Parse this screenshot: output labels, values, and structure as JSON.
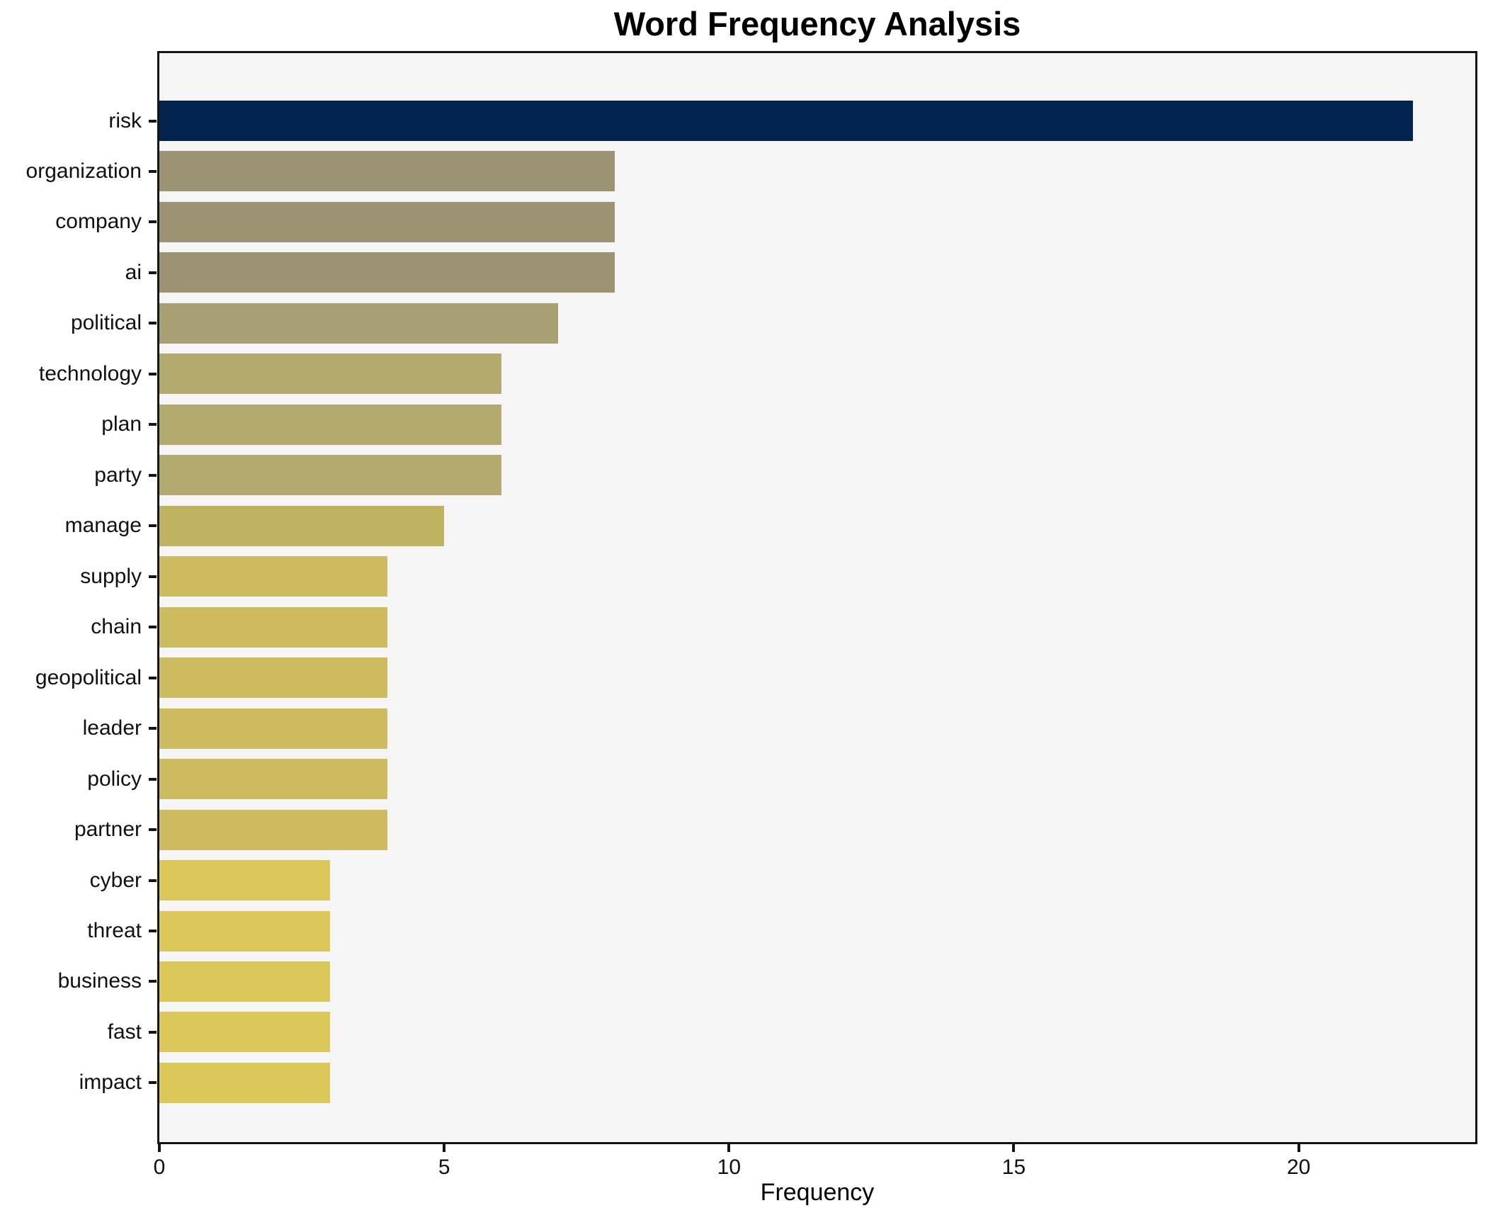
{
  "chart_data": {
    "type": "bar",
    "orientation": "horizontal",
    "title": "Word Frequency Analysis",
    "xlabel": "Frequency",
    "ylabel": "",
    "categories": [
      "risk",
      "organization",
      "company",
      "ai",
      "political",
      "technology",
      "plan",
      "party",
      "manage",
      "supply",
      "chain",
      "geopolitical",
      "leader",
      "policy",
      "partner",
      "cyber",
      "threat",
      "business",
      "fast",
      "impact"
    ],
    "values": [
      22,
      8,
      8,
      8,
      7,
      6,
      6,
      6,
      5,
      4,
      4,
      4,
      4,
      4,
      4,
      3,
      3,
      3,
      3,
      3
    ],
    "bar_colors": [
      "#02234d",
      "#9b9372",
      "#9b9372",
      "#9b9372",
      "#a89f72",
      "#b2a96e",
      "#b2a96e",
      "#b2a96e",
      "#bfb263",
      "#cdbc5f",
      "#cdbc5f",
      "#cdbc5f",
      "#cdbc5f",
      "#cdbc5f",
      "#cdbc5f",
      "#dcc75a",
      "#dcc75a",
      "#dcc75a",
      "#dcc75a",
      "#dcc75a"
    ],
    "xlim": [
      0,
      23.1
    ],
    "xticks": [
      0,
      5,
      10,
      15,
      20
    ],
    "grid": false,
    "legend": null,
    "plot_background": "#f5f5f6",
    "figure_background": "#ffffff",
    "spine_color": "#141414"
  }
}
